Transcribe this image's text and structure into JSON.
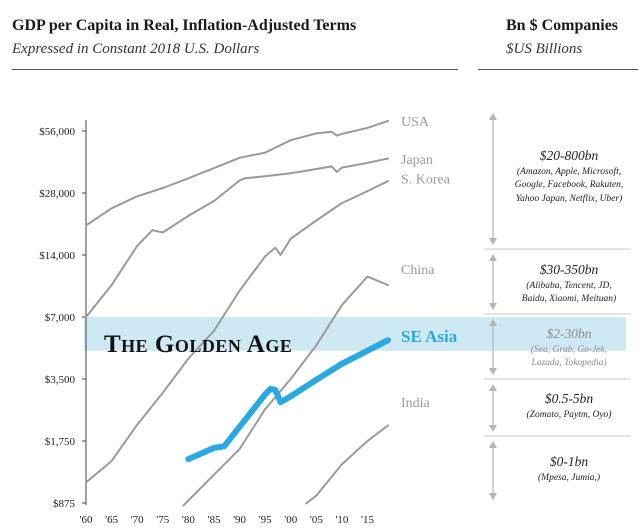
{
  "left_header": {
    "title": "GDP per Capita in Real, Inflation-Adjusted Terms",
    "subtitle": "Expressed in Constant 2018 U.S. Dollars"
  },
  "right_header": {
    "title": "Bn $ Companies",
    "subtitle": "$US Billions"
  },
  "highlight_label": "The Golden Age",
  "colors": {
    "highlight_band": "#cfe9f4",
    "se_asia": "#29a9e1",
    "other_series": "#9a9a9a",
    "label_grey": "#9a9a9a",
    "arrow": "#b5b5b5"
  },
  "tiers": [
    {
      "range": "$20-800bn",
      "companies": "(Amazon, Apple, Microsoft, Google, Facebook, Rakuten, Yahoo Japan, Netflix, Uber)"
    },
    {
      "range": "$30-350bn",
      "companies": "(Alibaba, Tencent, JD, Baidu, Xiaomi, Meituan)"
    },
    {
      "range": "$2-30bn",
      "companies": "(Sea, Grab, Go-Jek, Lazada, Tokopedia)"
    },
    {
      "range": "$0.5-5bn",
      "companies": "(Zomato, Paytm, Oyo)"
    },
    {
      "range": "$0-1bn",
      "companies": "(Mpesa, Jumia,)"
    }
  ],
  "chart_data": {
    "type": "line",
    "title": "GDP per Capita in Real, Inflation-Adjusted Terms",
    "subtitle": "Expressed in Constant 2018 U.S. Dollars",
    "y_scale": "log2",
    "ylim": [
      875,
      64000
    ],
    "xlim": [
      1960,
      2019
    ],
    "y_ticks": [
      875,
      1750,
      3500,
      7000,
      14000,
      28000,
      56000
    ],
    "y_tick_labels": [
      "$875",
      "$1,750",
      "$3,500",
      "$7,000",
      "$14,000",
      "$28,000",
      "$56,000"
    ],
    "x_ticks": [
      1960,
      1965,
      1970,
      1975,
      1980,
      1985,
      1990,
      1995,
      2000,
      2005,
      2010,
      2015
    ],
    "x_tick_labels": [
      "'60",
      "'65",
      "'70",
      "'75",
      "'80",
      "'85",
      "'90",
      "'95",
      "'00",
      "'05",
      "'10",
      "'15"
    ],
    "highlight_band": [
      4800,
      7000
    ],
    "series": [
      {
        "name": "USA",
        "highlight": false,
        "x": [
          1960,
          1965,
          1970,
          1975,
          1980,
          1985,
          1990,
          1995,
          2000,
          2005,
          2008,
          2009,
          2010,
          2015,
          2019
        ],
        "y": [
          19500,
          23600,
          27000,
          29600,
          33000,
          37000,
          41500,
          44000,
          50500,
          54500,
          55500,
          53200,
          54200,
          58000,
          62600
        ]
      },
      {
        "name": "Japan",
        "highlight": false,
        "x": [
          1960,
          1965,
          1970,
          1973,
          1975,
          1980,
          1985,
          1990,
          1991,
          1995,
          2000,
          2005,
          2008,
          2009,
          2010,
          2015,
          2019
        ],
        "y": [
          7000,
          10000,
          15500,
          18500,
          18000,
          21700,
          25600,
          32200,
          33000,
          33800,
          34900,
          36600,
          37700,
          35400,
          37200,
          39200,
          41200
        ]
      },
      {
        "name": "S. Korea",
        "highlight": false,
        "x": [
          1960,
          1965,
          1970,
          1975,
          1980,
          1985,
          1990,
          1995,
          1997,
          1998,
          2000,
          2005,
          2010,
          2015,
          2019
        ],
        "y": [
          1100,
          1400,
          2100,
          3000,
          4400,
          6000,
          9400,
          13800,
          15200,
          14000,
          16800,
          20600,
          25000,
          28600,
          32000
        ]
      },
      {
        "name": "China",
        "highlight": false,
        "x": [
          1979,
          1985,
          1990,
          1995,
          2000,
          2005,
          2010,
          2015,
          2019
        ],
        "y": [
          850,
          1200,
          1600,
          2500,
          3500,
          5100,
          8000,
          11000,
          10000
        ]
      },
      {
        "name": "SE Asia",
        "highlight": true,
        "x": [
          1980,
          1985,
          1987,
          1990,
          1995,
          1996,
          1997,
          1998,
          2000,
          2005,
          2010,
          2015,
          2019
        ],
        "y": [
          1430,
          1620,
          1650,
          2050,
          2950,
          3130,
          3100,
          2700,
          2880,
          3470,
          4150,
          4800,
          5400
        ]
      },
      {
        "name": "India",
        "highlight": false,
        "x": [
          2003,
          2005,
          2010,
          2015,
          2019
        ],
        "y": [
          870,
          950,
          1350,
          1750,
          2080
        ]
      }
    ],
    "labels": [
      {
        "text": "USA",
        "value": 62600
      },
      {
        "text": "Japan",
        "value": 41000
      },
      {
        "text": "S. Korea",
        "value": 33000
      },
      {
        "text": "China",
        "value": 12000
      },
      {
        "text": "SE Asia",
        "value": 5600
      },
      {
        "text": "India",
        "value": 2700
      }
    ]
  }
}
